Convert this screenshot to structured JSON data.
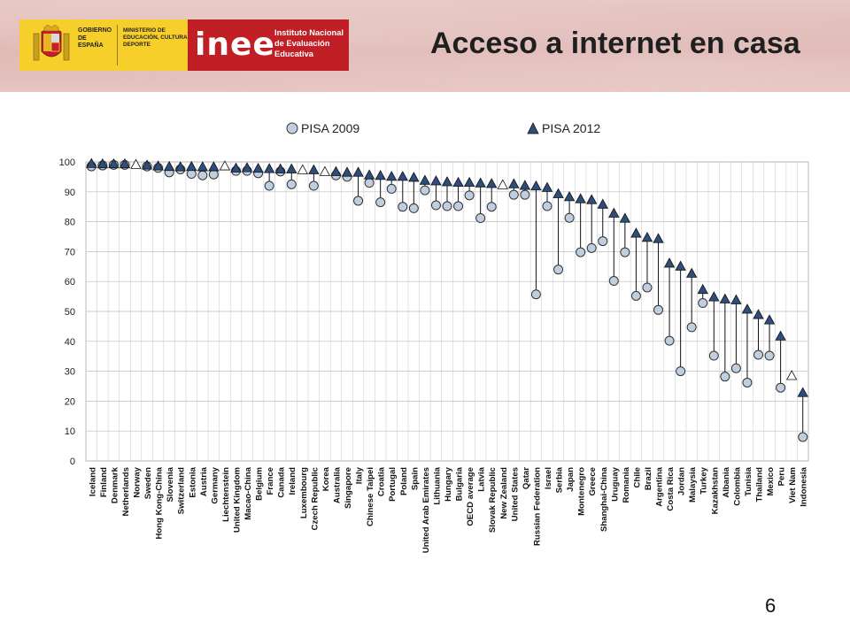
{
  "header": {
    "gov_text": "GOBIERNO DE ESPAÑA",
    "ministry_text": "MINISTERIO DE EDUCACIÓN, CULTURA Y DEPORTE",
    "inee_logo": "inee",
    "inee_full": "Instituto Nacional de Evaluación Educativa"
  },
  "title": "Acceso a internet en casa",
  "page_number": "6",
  "colors": {
    "header_band": "#dcb3b0",
    "inee_red": "#bf1f25",
    "gov_yellow": "#f7cf2a",
    "circle_fill": "#bfcfe0",
    "triangle_fill": "#2e4d7a"
  },
  "chart_data": {
    "type": "scatter",
    "ylim": [
      0,
      100
    ],
    "yticks": [
      0,
      10,
      20,
      30,
      40,
      50,
      60,
      70,
      80,
      90,
      100
    ],
    "grid": true,
    "legend_position": "top",
    "series": [
      {
        "name": "PISA 2009",
        "marker": "circle"
      },
      {
        "name": "PISA 2012",
        "marker": "triangle"
      }
    ],
    "categories": [
      "Iceland",
      "Finland",
      "Denmark",
      "Netherlands",
      "Norway",
      "Sweden",
      "Hong Kong-China",
      "Slovenia",
      "Switzerland",
      "Estonia",
      "Austria",
      "Germany",
      "Liechtenstein",
      "United Kingdom",
      "Macao-China",
      "Belgium",
      "France",
      "Canada",
      "Ireland",
      "Luxembourg",
      "Czech Republic",
      "Korea",
      "Australia",
      "Singapore",
      "Italy",
      "Chinese Taipei",
      "Croatia",
      "Portugal",
      "Poland",
      "Spain",
      "United Arab Emirates",
      "Lithuania",
      "Hungary",
      "Bulgaria",
      "OECD average",
      "Latvia",
      "Slovak Republic",
      "New Zealand",
      "United States",
      "Qatar",
      "Russian Federation",
      "Israel",
      "Serbia",
      "Japan",
      "Montenegro",
      "Greece",
      "Shanghai-China",
      "Uruguay",
      "Romania",
      "Chile",
      "Brazil",
      "Argentina",
      "Costa Rica",
      "Jordan",
      "Malaysia",
      "Turkey",
      "Kazakhstan",
      "Albania",
      "Colombia",
      "Tunisia",
      "Thailand",
      "Mexico",
      "Peru",
      "Viet Nam",
      "Indonesia"
    ],
    "pisa2009": [
      98.5,
      98.8,
      99.0,
      99.0,
      null,
      98.5,
      98.0,
      96.5,
      97.5,
      96.0,
      95.5,
      95.8,
      null,
      97.0,
      97.0,
      96.2,
      92.0,
      96.8,
      92.5,
      null,
      92.0,
      null,
      95.5,
      95.0,
      87.0,
      93.0,
      86.5,
      91.0,
      85.0,
      84.5,
      90.5,
      85.5,
      85.2,
      85.2,
      88.8,
      81.2,
      85.0,
      null,
      89.0,
      89.0,
      55.7,
      85.2,
      64.0,
      81.3,
      69.8,
      71.2,
      73.5,
      60.2,
      69.8,
      55.2,
      58.0,
      50.5,
      40.2,
      30.0,
      44.7,
      52.8,
      35.2,
      28.2,
      31.0,
      26.2,
      35.5,
      35.2,
      24.5,
      null,
      8.0
    ],
    "pisa2012": [
      99.3,
      99.2,
      99.2,
      99.2,
      99.0,
      98.8,
      98.5,
      98.3,
      98.2,
      98.3,
      98.2,
      98.2,
      98.5,
      97.8,
      97.9,
      97.7,
      97.6,
      97.5,
      97.5,
      97.2,
      97.2,
      96.6,
      96.6,
      96.4,
      96.4,
      95.5,
      95.3,
      95.0,
      95.0,
      94.7,
      93.7,
      93.5,
      93.2,
      93.0,
      93.0,
      92.8,
      92.6,
      92.2,
      92.5,
      92.0,
      91.8,
      91.3,
      89.2,
      88.2,
      87.5,
      87.2,
      85.7,
      82.7,
      81.0,
      76.0,
      74.6,
      74.2,
      66.0,
      65.0,
      62.6,
      57.2,
      54.7,
      54.0,
      53.7,
      50.6,
      48.8,
      47.0,
      41.6,
      28.4,
      22.7
    ],
    "pisa2012_hollow": [
      4,
      12,
      19,
      21,
      37,
      63
    ]
  }
}
